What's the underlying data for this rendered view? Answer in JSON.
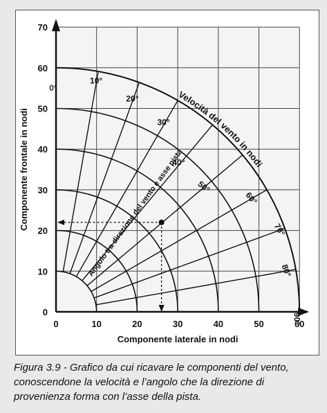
{
  "figure": {
    "x_axis_label": "Componente laterale in nodi",
    "y_axis_label": "Componente frontale in nodi",
    "speed_label": "Velocità del vento in nodi",
    "angle_label": "Angolo tra direzione del vento e asse pista",
    "x_ticks": [
      "0",
      "10",
      "20",
      "30",
      "40",
      "50",
      "60"
    ],
    "y_ticks": [
      "0",
      "10",
      "20",
      "30",
      "40",
      "50",
      "60",
      "70"
    ],
    "angle_labels": [
      "0°",
      "10°",
      "20°",
      "30°",
      "40°",
      "50°",
      "60°",
      "70°",
      "80°",
      "90°"
    ],
    "colors": {
      "grid": "#444444",
      "background": "#ffffff",
      "ink": "#111111",
      "page": "#e9e9e7"
    }
  },
  "caption": {
    "text": "Figura 3.9 - Grafico da cui ricavare le componenti del vento, conoscendone la velocità e l’angolo che la direzione di provenienza forma con l’asse della pista."
  },
  "chart_data": {
    "type": "polar-nomogram",
    "x_range": [
      0,
      60
    ],
    "y_range": [
      0,
      70
    ],
    "grid": true,
    "wind_speed_arcs_knots": [
      10,
      20,
      30,
      40,
      50,
      60
    ],
    "angle_rays_degrees": [
      0,
      10,
      20,
      30,
      40,
      50,
      60,
      70,
      80,
      90
    ],
    "example_point": {
      "x": 26,
      "y": 22
    }
  }
}
